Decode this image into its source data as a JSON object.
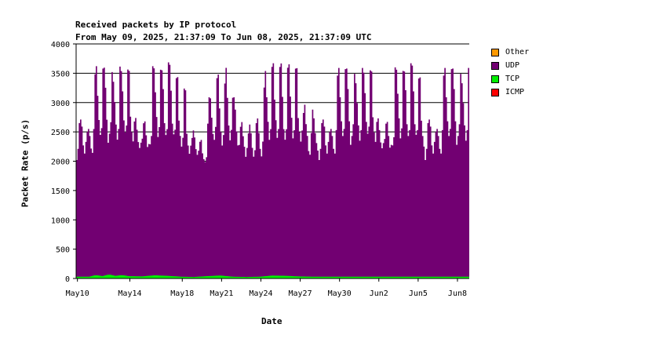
{
  "title": "Received packets by IP protocol",
  "subtitle": "From May 09, 2025, 21:37:09 To Jun 08, 2025, 21:37:09 UTC",
  "xlabel": "Date",
  "ylabel": "Packet Rate (p/s)",
  "legend": [
    {
      "label": "Other",
      "color": "#ff9900"
    },
    {
      "label": "UDP",
      "color": "#720072"
    },
    {
      "label": "TCP",
      "color": "#00ee00"
    },
    {
      "label": "ICMP",
      "color": "#ff0000"
    }
  ],
  "chart_data": {
    "type": "area",
    "stacked": true,
    "ylim": [
      0,
      4000
    ],
    "yticks": [
      0,
      500,
      1000,
      1500,
      2000,
      2500,
      3000,
      3500,
      4000
    ],
    "xlim": [
      0,
      30.0
    ],
    "xticks": [
      {
        "x": 0.1,
        "label": "May10"
      },
      {
        "x": 4.1,
        "label": "May14"
      },
      {
        "x": 8.1,
        "label": "May18"
      },
      {
        "x": 11.1,
        "label": "May21"
      },
      {
        "x": 14.1,
        "label": "May24"
      },
      {
        "x": 17.1,
        "label": "May27"
      },
      {
        "x": 20.1,
        "label": "May30"
      },
      {
        "x": 23.1,
        "label": "Jun2"
      },
      {
        "x": 26.1,
        "label": "Jun5"
      },
      {
        "x": 29.1,
        "label": "Jun8"
      }
    ],
    "grid": "horizontal",
    "legend_position": "right",
    "x_unit": "days since May 09, 2025 21:37 UTC",
    "series": [
      {
        "name": "UDP",
        "color": "#720072",
        "values": [
          [
            0.0,
            1990
          ],
          [
            0.1,
            2180
          ],
          [
            0.2,
            2620
          ],
          [
            0.3,
            2680
          ],
          [
            0.4,
            2560
          ],
          [
            0.5,
            2240
          ],
          [
            0.6,
            2100
          ],
          [
            0.7,
            2300
          ],
          [
            0.8,
            2470
          ],
          [
            0.9,
            2520
          ],
          [
            1.0,
            2400
          ],
          [
            1.1,
            2180
          ],
          [
            1.2,
            2100
          ],
          [
            1.3,
            2500
          ],
          [
            1.4,
            3430
          ],
          [
            1.5,
            3560
          ],
          [
            1.6,
            3060
          ],
          [
            1.7,
            2650
          ],
          [
            1.8,
            2400
          ],
          [
            1.9,
            2520
          ],
          [
            2.0,
            3540
          ],
          [
            2.1,
            3550
          ],
          [
            2.2,
            3200
          ],
          [
            2.3,
            2650
          ],
          [
            2.4,
            2250
          ],
          [
            2.5,
            2400
          ],
          [
            2.6,
            2600
          ],
          [
            2.7,
            3460
          ],
          [
            2.8,
            3300
          ],
          [
            2.9,
            2960
          ],
          [
            3.0,
            2580
          ],
          [
            3.1,
            2320
          ],
          [
            3.2,
            2500
          ],
          [
            3.3,
            3560
          ],
          [
            3.4,
            3480
          ],
          [
            3.5,
            3130
          ],
          [
            3.6,
            2640
          ],
          [
            3.7,
            2440
          ],
          [
            3.8,
            2560
          ],
          [
            3.9,
            3520
          ],
          [
            4.0,
            3500
          ],
          [
            4.1,
            2720
          ],
          [
            4.2,
            2460
          ],
          [
            4.3,
            2300
          ],
          [
            4.4,
            2640
          ],
          [
            4.5,
            2700
          ],
          [
            4.6,
            2500
          ],
          [
            4.7,
            2290
          ],
          [
            4.8,
            2190
          ],
          [
            4.9,
            2280
          ],
          [
            5.0,
            2350
          ],
          [
            5.1,
            2610
          ],
          [
            5.2,
            2640
          ],
          [
            5.3,
            2400
          ],
          [
            5.4,
            2200
          ],
          [
            5.5,
            2250
          ],
          [
            5.6,
            2240
          ],
          [
            5.7,
            2380
          ],
          [
            5.8,
            3570
          ],
          [
            5.9,
            3530
          ],
          [
            6.0,
            3120
          ],
          [
            6.1,
            2700
          ],
          [
            6.2,
            2360
          ],
          [
            6.3,
            2530
          ],
          [
            6.4,
            3510
          ],
          [
            6.5,
            3500
          ],
          [
            6.6,
            3180
          ],
          [
            6.7,
            2600
          ],
          [
            6.8,
            2400
          ],
          [
            6.9,
            2500
          ],
          [
            7.0,
            3640
          ],
          [
            7.1,
            3600
          ],
          [
            7.2,
            3160
          ],
          [
            7.3,
            2600
          ],
          [
            7.4,
            2420
          ],
          [
            7.5,
            2500
          ],
          [
            7.6,
            3380
          ],
          [
            7.7,
            3400
          ],
          [
            7.8,
            2660
          ],
          [
            7.9,
            2400
          ],
          [
            8.0,
            2220
          ],
          [
            8.1,
            2370
          ],
          [
            8.2,
            3210
          ],
          [
            8.3,
            3180
          ],
          [
            8.4,
            2440
          ],
          [
            8.5,
            2240
          ],
          [
            8.6,
            2100
          ],
          [
            8.7,
            2240
          ],
          [
            8.8,
            2370
          ],
          [
            8.9,
            2500
          ],
          [
            9.0,
            2380
          ],
          [
            9.1,
            2180
          ],
          [
            9.2,
            2080
          ],
          [
            9.3,
            2150
          ],
          [
            9.4,
            2300
          ],
          [
            9.5,
            2330
          ],
          [
            9.6,
            2100
          ],
          [
            9.7,
            2000
          ],
          [
            9.8,
            1950
          ],
          [
            9.9,
            2030
          ],
          [
            10.0,
            2600
          ],
          [
            10.1,
            3050
          ],
          [
            10.2,
            3030
          ],
          [
            10.3,
            2700
          ],
          [
            10.4,
            2420
          ],
          [
            10.5,
            2320
          ],
          [
            10.6,
            2540
          ],
          [
            10.7,
            3370
          ],
          [
            10.8,
            3430
          ],
          [
            10.9,
            2850
          ],
          [
            11.0,
            2450
          ],
          [
            11.1,
            2220
          ],
          [
            11.2,
            2400
          ],
          [
            11.3,
            3280
          ],
          [
            11.4,
            3550
          ],
          [
            11.5,
            3040
          ],
          [
            11.6,
            2570
          ],
          [
            11.7,
            2320
          ],
          [
            11.8,
            2500
          ],
          [
            11.9,
            3050
          ],
          [
            12.0,
            3060
          ],
          [
            12.1,
            2850
          ],
          [
            12.2,
            2480
          ],
          [
            12.3,
            2240
          ],
          [
            12.4,
            2250
          ],
          [
            12.5,
            2560
          ],
          [
            12.6,
            2640
          ],
          [
            12.7,
            2400
          ],
          [
            12.8,
            2220
          ],
          [
            12.9,
            2050
          ],
          [
            13.0,
            2200
          ],
          [
            13.1,
            2450
          ],
          [
            13.2,
            2600
          ],
          [
            13.3,
            2450
          ],
          [
            13.4,
            2200
          ],
          [
            13.5,
            2050
          ],
          [
            13.6,
            2160
          ],
          [
            13.7,
            2620
          ],
          [
            13.8,
            2700
          ],
          [
            13.9,
            2450
          ],
          [
            14.0,
            2180
          ],
          [
            14.1,
            2050
          ],
          [
            14.2,
            2300
          ],
          [
            14.3,
            3220
          ],
          [
            14.4,
            3500
          ],
          [
            14.5,
            3050
          ],
          [
            14.6,
            2630
          ],
          [
            14.7,
            2320
          ],
          [
            14.8,
            2500
          ],
          [
            14.9,
            3560
          ],
          [
            15.0,
            3620
          ],
          [
            15.1,
            3000
          ],
          [
            15.2,
            2650
          ],
          [
            15.3,
            2350
          ],
          [
            15.4,
            2500
          ],
          [
            15.5,
            3560
          ],
          [
            15.6,
            3620
          ],
          [
            15.7,
            3050
          ],
          [
            15.8,
            2500
          ],
          [
            15.9,
            2320
          ],
          [
            16.0,
            2500
          ],
          [
            16.1,
            3550
          ],
          [
            16.2,
            3610
          ],
          [
            16.3,
            3060
          ],
          [
            16.4,
            2700
          ],
          [
            16.5,
            2350
          ],
          [
            16.6,
            2490
          ],
          [
            16.7,
            3540
          ],
          [
            16.8,
            3550
          ],
          [
            16.9,
            2700
          ],
          [
            17.0,
            2460
          ],
          [
            17.1,
            2300
          ],
          [
            17.2,
            2490
          ],
          [
            17.3,
            2790
          ],
          [
            17.4,
            2930
          ],
          [
            17.5,
            2600
          ],
          [
            17.6,
            2400
          ],
          [
            17.7,
            2140
          ],
          [
            17.8,
            2080
          ],
          [
            17.9,
            2450
          ],
          [
            18.0,
            2850
          ],
          [
            18.1,
            2700
          ],
          [
            18.2,
            2450
          ],
          [
            18.3,
            2280
          ],
          [
            18.4,
            2150
          ]
        ]
      },
      {
        "name": "TCP",
        "color": "#00ee00",
        "values": [
          [
            0.0,
            30
          ],
          [
            1.0,
            30
          ],
          [
            1.5,
            60
          ],
          [
            2.0,
            40
          ],
          [
            2.5,
            70
          ],
          [
            3.0,
            45
          ],
          [
            3.5,
            60
          ],
          [
            4.0,
            40
          ],
          [
            5.0,
            35
          ],
          [
            6.0,
            55
          ],
          [
            7.0,
            45
          ],
          [
            8.0,
            30
          ],
          [
            9.0,
            25
          ],
          [
            10.0,
            40
          ],
          [
            11.0,
            50
          ],
          [
            12.0,
            30
          ],
          [
            13.0,
            25
          ],
          [
            14.0,
            30
          ],
          [
            15.0,
            50
          ],
          [
            16.0,
            45
          ],
          [
            17.0,
            35
          ],
          [
            18.0,
            30
          ],
          [
            18.4,
            30
          ]
        ]
      },
      {
        "name": "ICMP",
        "color": "#ff0000",
        "values": [
          [
            0.0,
            2
          ],
          [
            18.4,
            2
          ]
        ]
      },
      {
        "name": "Other",
        "color": "#ff9900",
        "values": [
          [
            0.0,
            0
          ],
          [
            18.4,
            0
          ]
        ]
      }
    ]
  }
}
